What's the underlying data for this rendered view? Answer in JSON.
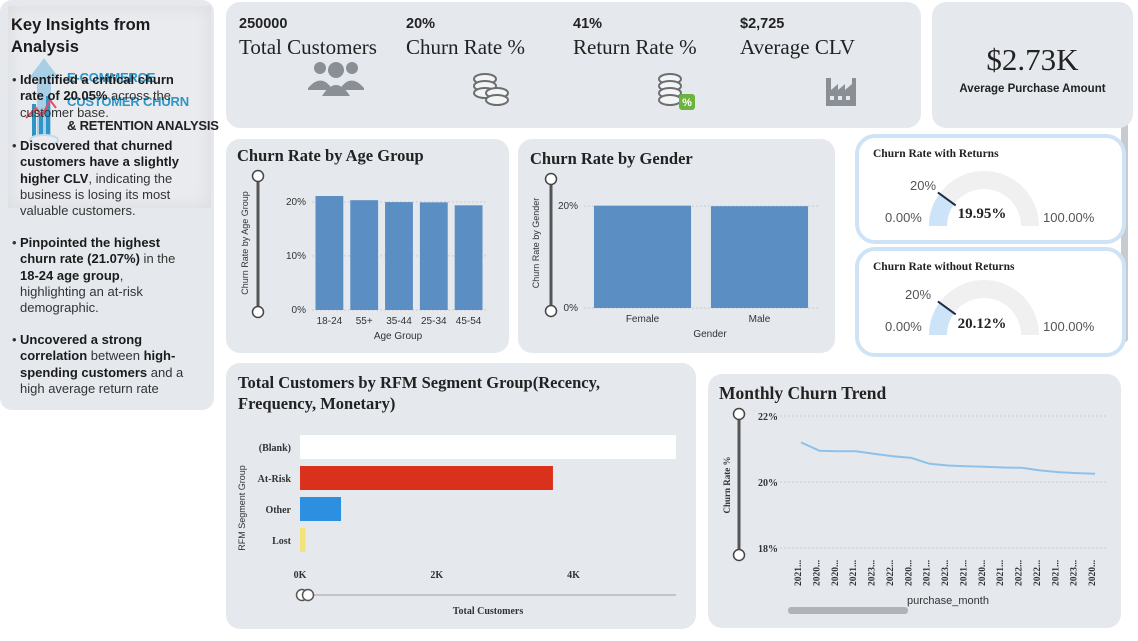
{
  "logo": {
    "line1": "E-COMMERCE",
    "line2": "CUSTOMER CHURN",
    "line3": "& RETENTION ANALYSIS"
  },
  "kpis": {
    "total_customers": {
      "value": "250000",
      "label": "Total Customers",
      "icon": "users-icon"
    },
    "churn_rate": {
      "value": "20%",
      "label": "Churn Rate %",
      "icon": "coins-icon"
    },
    "return_rate": {
      "value": "41%",
      "label": "Return Rate %",
      "icon": "coins-percent-icon"
    },
    "average_clv": {
      "value": "$2,725",
      "label": "Average CLV",
      "icon": "factory-icon"
    },
    "average_purchase": {
      "value": "$2.73K",
      "label": "Average Purchase Amount"
    }
  },
  "insights": {
    "title": "Key Insights from Analysis",
    "items": [
      {
        "bold": "Identified a critical churn rate of 20.05%",
        "rest": " across the customer base."
      },
      {
        "bold": "Discovered that churned customers have a slightly higher CLV",
        "rest": ", indicating the business is losing its most valuable customers."
      },
      {
        "bold": "Pinpointed the highest churn rate (21.07%)",
        "rest": " in the ",
        "bold2": "18-24 age group",
        "rest2": ", highlighting an at-risk demographic."
      },
      {
        "bold": "Uncovered a strong correlation",
        "rest": " between ",
        "bold2": "high-spending customers",
        "rest2": " and a high average return rate"
      }
    ]
  },
  "colors": {
    "bar": "#5b8ec2",
    "at_risk": "#d9311c",
    "other": "#2d8fe0",
    "lost": "#f1e27a",
    "blank": "#ffffff",
    "gauge_fill": "#cde4f8",
    "gauge_track": "#f0f0f0",
    "line": "#8ec1ea"
  },
  "chart_data": [
    {
      "type": "bar",
      "title": "Churn Rate by Age Group",
      "xlabel": "Age Group",
      "ylabel": "Churn Rate by Age Group",
      "categories": [
        "18-24",
        "55+",
        "35-44",
        "25-34",
        "45-54"
      ],
      "values": [
        21.07,
        20.3,
        19.95,
        19.9,
        19.35
      ],
      "ylim": [
        0,
        22
      ],
      "yticks": [
        "0%",
        "10%",
        "20%"
      ],
      "yticks_values": [
        0,
        10,
        20
      ],
      "grid": true
    },
    {
      "type": "bar",
      "title": "Churn Rate by Gender",
      "xlabel": "Gender",
      "ylabel": "Churn Rate by Gender",
      "categories": [
        "Female",
        "Male"
      ],
      "values": [
        20.1,
        20.0
      ],
      "ylim": [
        0,
        22
      ],
      "yticks": [
        "0%",
        "20%"
      ],
      "yticks_values": [
        0,
        20
      ],
      "grid": true
    },
    {
      "type": "bar",
      "orientation": "horizontal",
      "title": "Total Customers by RFM Segment Group(Recency, Frequency, Monetary)",
      "xlabel": "Total Customers",
      "ylabel": "RFM Segment Group",
      "categories": [
        "(Blank)",
        "At-Risk",
        "Other",
        "Lost"
      ],
      "values": [
        5500,
        3700,
        600,
        80
      ],
      "xlim": [
        0,
        5500
      ],
      "xticks": [
        "0K",
        "2K",
        "4K"
      ],
      "xticks_values": [
        0,
        2000,
        4000
      ]
    },
    {
      "type": "line",
      "title": "Monthly Churn Trend",
      "xlabel": "purchase_month",
      "ylabel": "Churn Rate %",
      "x": [
        "2021...",
        "2020...",
        "2020...",
        "2021...",
        "2023...",
        "2022...",
        "2020...",
        "2021...",
        "2023...",
        "2021...",
        "2020...",
        "2021...",
        "2022...",
        "2022...",
        "2021...",
        "2023...",
        "2020..."
      ],
      "y": [
        21.2,
        20.95,
        20.93,
        20.93,
        20.85,
        20.78,
        20.73,
        20.55,
        20.5,
        20.48,
        20.46,
        20.44,
        20.43,
        20.35,
        20.3,
        20.27,
        20.25
      ],
      "ylim": [
        18,
        22
      ],
      "yticks": [
        "18%",
        "20%",
        "22%"
      ],
      "yticks_values": [
        18,
        20,
        22
      ],
      "grid": true
    }
  ],
  "gauges": [
    {
      "title": "Churn Rate with Returns",
      "value": 19.95,
      "value_label": "19.95%",
      "min_label": "0.00%",
      "max_label": "100.00%",
      "target_label": "20%",
      "target": 20
    },
    {
      "title": "Churn Rate without Returns",
      "value": 20.12,
      "value_label": "20.12%",
      "min_label": "0.00%",
      "max_label": "100.00%",
      "target_label": "20%",
      "target": 20
    }
  ]
}
